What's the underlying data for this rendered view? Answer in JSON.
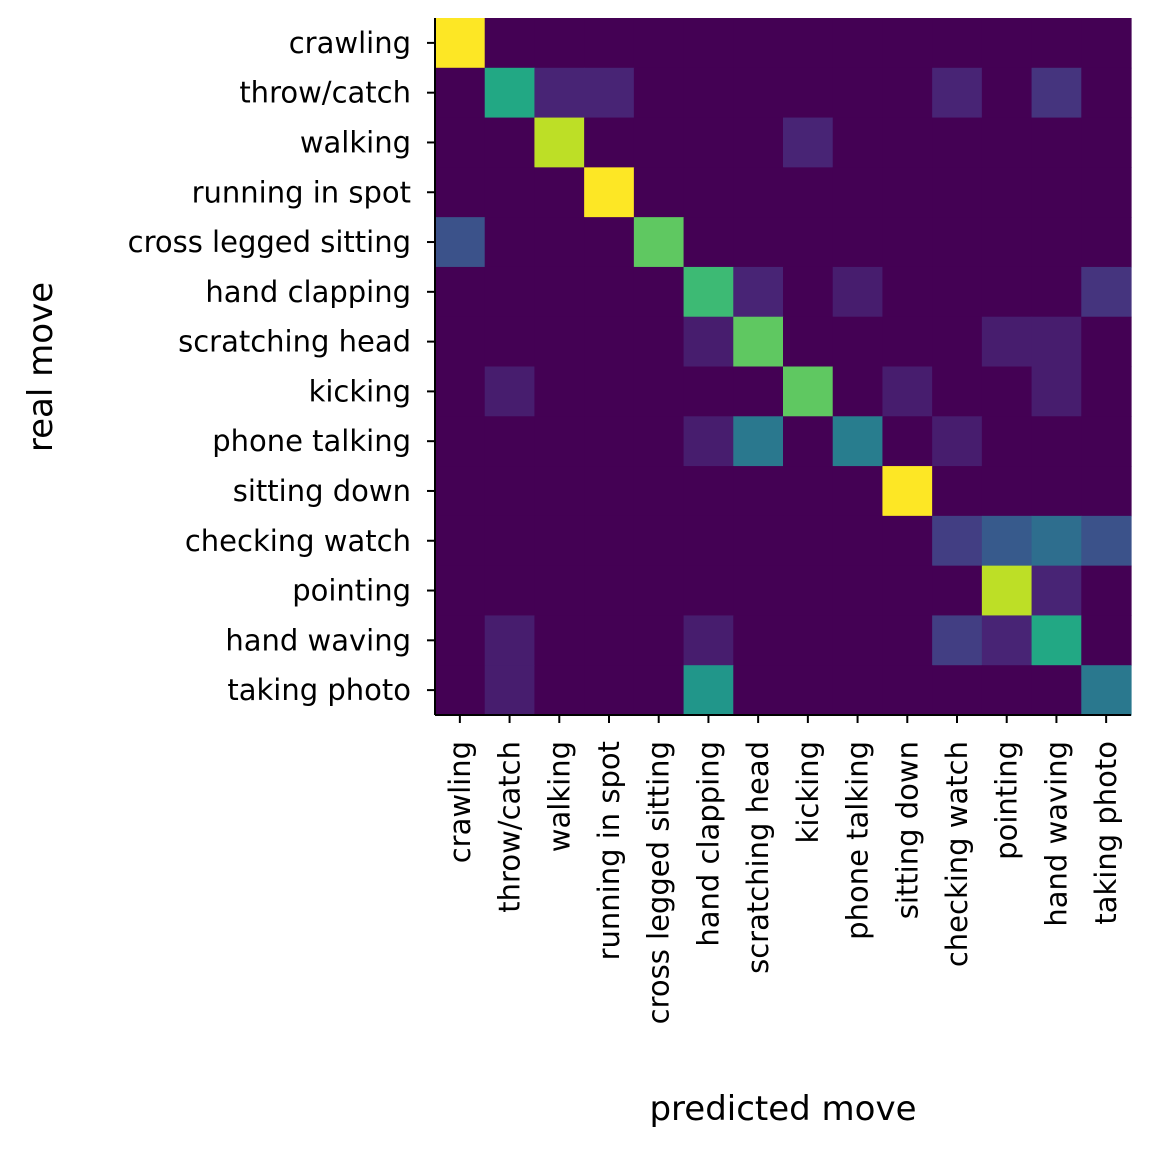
{
  "chart_data": {
    "type": "heatmap",
    "title": "",
    "xlabel": "predicted move",
    "ylabel": "real move",
    "colormap": "viridis",
    "value_range": [
      0,
      1
    ],
    "grid": false,
    "x_categories": [
      "crawling",
      "throw/catch",
      "walking",
      "running in spot",
      "cross legged sitting",
      "hand clapping",
      "scratching head",
      "kicking",
      "phone talking",
      "sitting down",
      "checking watch",
      "pointing",
      "hand waving",
      "taking photo"
    ],
    "y_categories": [
      "crawling",
      "throw/catch",
      "walking",
      "running in spot",
      "cross legged sitting",
      "hand clapping",
      "scratching head",
      "kicking",
      "phone talking",
      "sitting down",
      "checking watch",
      "pointing",
      "hand waving",
      "taking photo"
    ],
    "values": [
      [
        1,
        0,
        0,
        0,
        0,
        0,
        0,
        0,
        0,
        0,
        0,
        0,
        0,
        0
      ],
      [
        0,
        0.6,
        0.1,
        0.1,
        0,
        0,
        0,
        0,
        0,
        0,
        0.1,
        0,
        0.15,
        0
      ],
      [
        0,
        0,
        0.9,
        0,
        0,
        0,
        0,
        0.1,
        0,
        0,
        0,
        0,
        0,
        0
      ],
      [
        0,
        0,
        0,
        1,
        0,
        0,
        0,
        0,
        0,
        0,
        0,
        0,
        0,
        0
      ],
      [
        0.25,
        0,
        0,
        0,
        0.75,
        0,
        0,
        0,
        0,
        0,
        0,
        0,
        0,
        0
      ],
      [
        0,
        0,
        0,
        0,
        0,
        0.68,
        0.1,
        0,
        0.08,
        0,
        0,
        0,
        0,
        0.15
      ],
      [
        0,
        0,
        0,
        0,
        0,
        0.08,
        0.75,
        0,
        0,
        0,
        0,
        0.08,
        0.08,
        0
      ],
      [
        0,
        0.08,
        0,
        0,
        0,
        0,
        0,
        0.75,
        0,
        0.08,
        0,
        0,
        0.08,
        0
      ],
      [
        0,
        0,
        0,
        0,
        0,
        0.08,
        0.4,
        0,
        0.42,
        0,
        0.08,
        0,
        0,
        0
      ],
      [
        0,
        0,
        0,
        0,
        0,
        0,
        0,
        0,
        0,
        1,
        0,
        0,
        0,
        0
      ],
      [
        0,
        0,
        0,
        0,
        0,
        0,
        0,
        0,
        0,
        0,
        0.18,
        0.28,
        0.36,
        0.25
      ],
      [
        0,
        0,
        0,
        0,
        0,
        0,
        0,
        0,
        0,
        0,
        0,
        0.9,
        0.1,
        0
      ],
      [
        0,
        0.08,
        0,
        0,
        0,
        0.08,
        0,
        0,
        0,
        0,
        0.18,
        0.1,
        0.6,
        0
      ],
      [
        0,
        0.08,
        0,
        0,
        0,
        0.52,
        0,
        0,
        0,
        0,
        0,
        0,
        0,
        0.4
      ]
    ]
  }
}
